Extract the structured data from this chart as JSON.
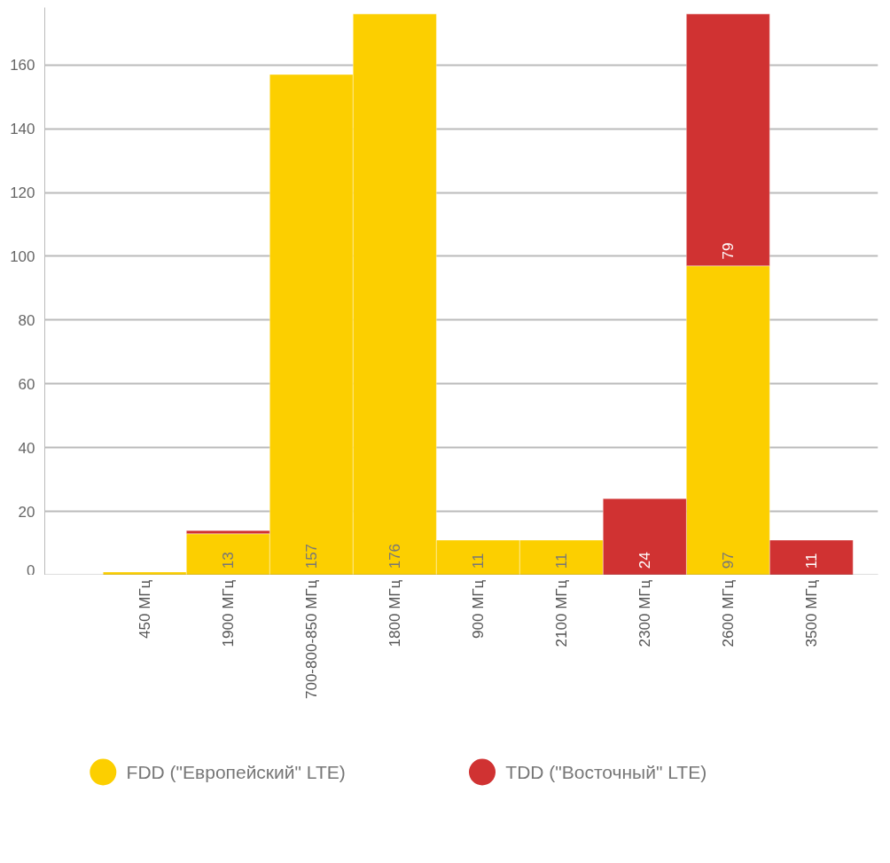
{
  "chart_data": {
    "type": "bar",
    "stacked": true,
    "categories": [
      "450 МГц",
      "1900 МГц",
      "700-800-850 МГц",
      "1800 МГц",
      "900 МГц",
      "2100 МГц",
      "2300 МГц",
      "2600 МГц",
      "3500 МГц"
    ],
    "series": [
      {
        "name": "FDD (\"Европейский\" LTE)",
        "color": "#fccf00",
        "values": [
          1,
          13,
          157,
          176,
          11,
          11,
          null,
          97,
          null
        ],
        "value_labels": [
          null,
          "13",
          "157",
          "176",
          "11",
          "11",
          null,
          "97",
          null
        ]
      },
      {
        "name": "TDD (\"Восточный\" LTE)",
        "color": "#d03232",
        "values": [
          null,
          1,
          null,
          null,
          null,
          null,
          24,
          79,
          11
        ],
        "value_labels": [
          null,
          null,
          null,
          null,
          null,
          null,
          "24",
          "79",
          "11"
        ]
      }
    ],
    "ylim": [
      0,
      178
    ],
    "yticks": [
      0,
      20,
      40,
      60,
      80,
      100,
      120,
      140,
      160
    ],
    "grid": "y",
    "legend": "bottom"
  }
}
